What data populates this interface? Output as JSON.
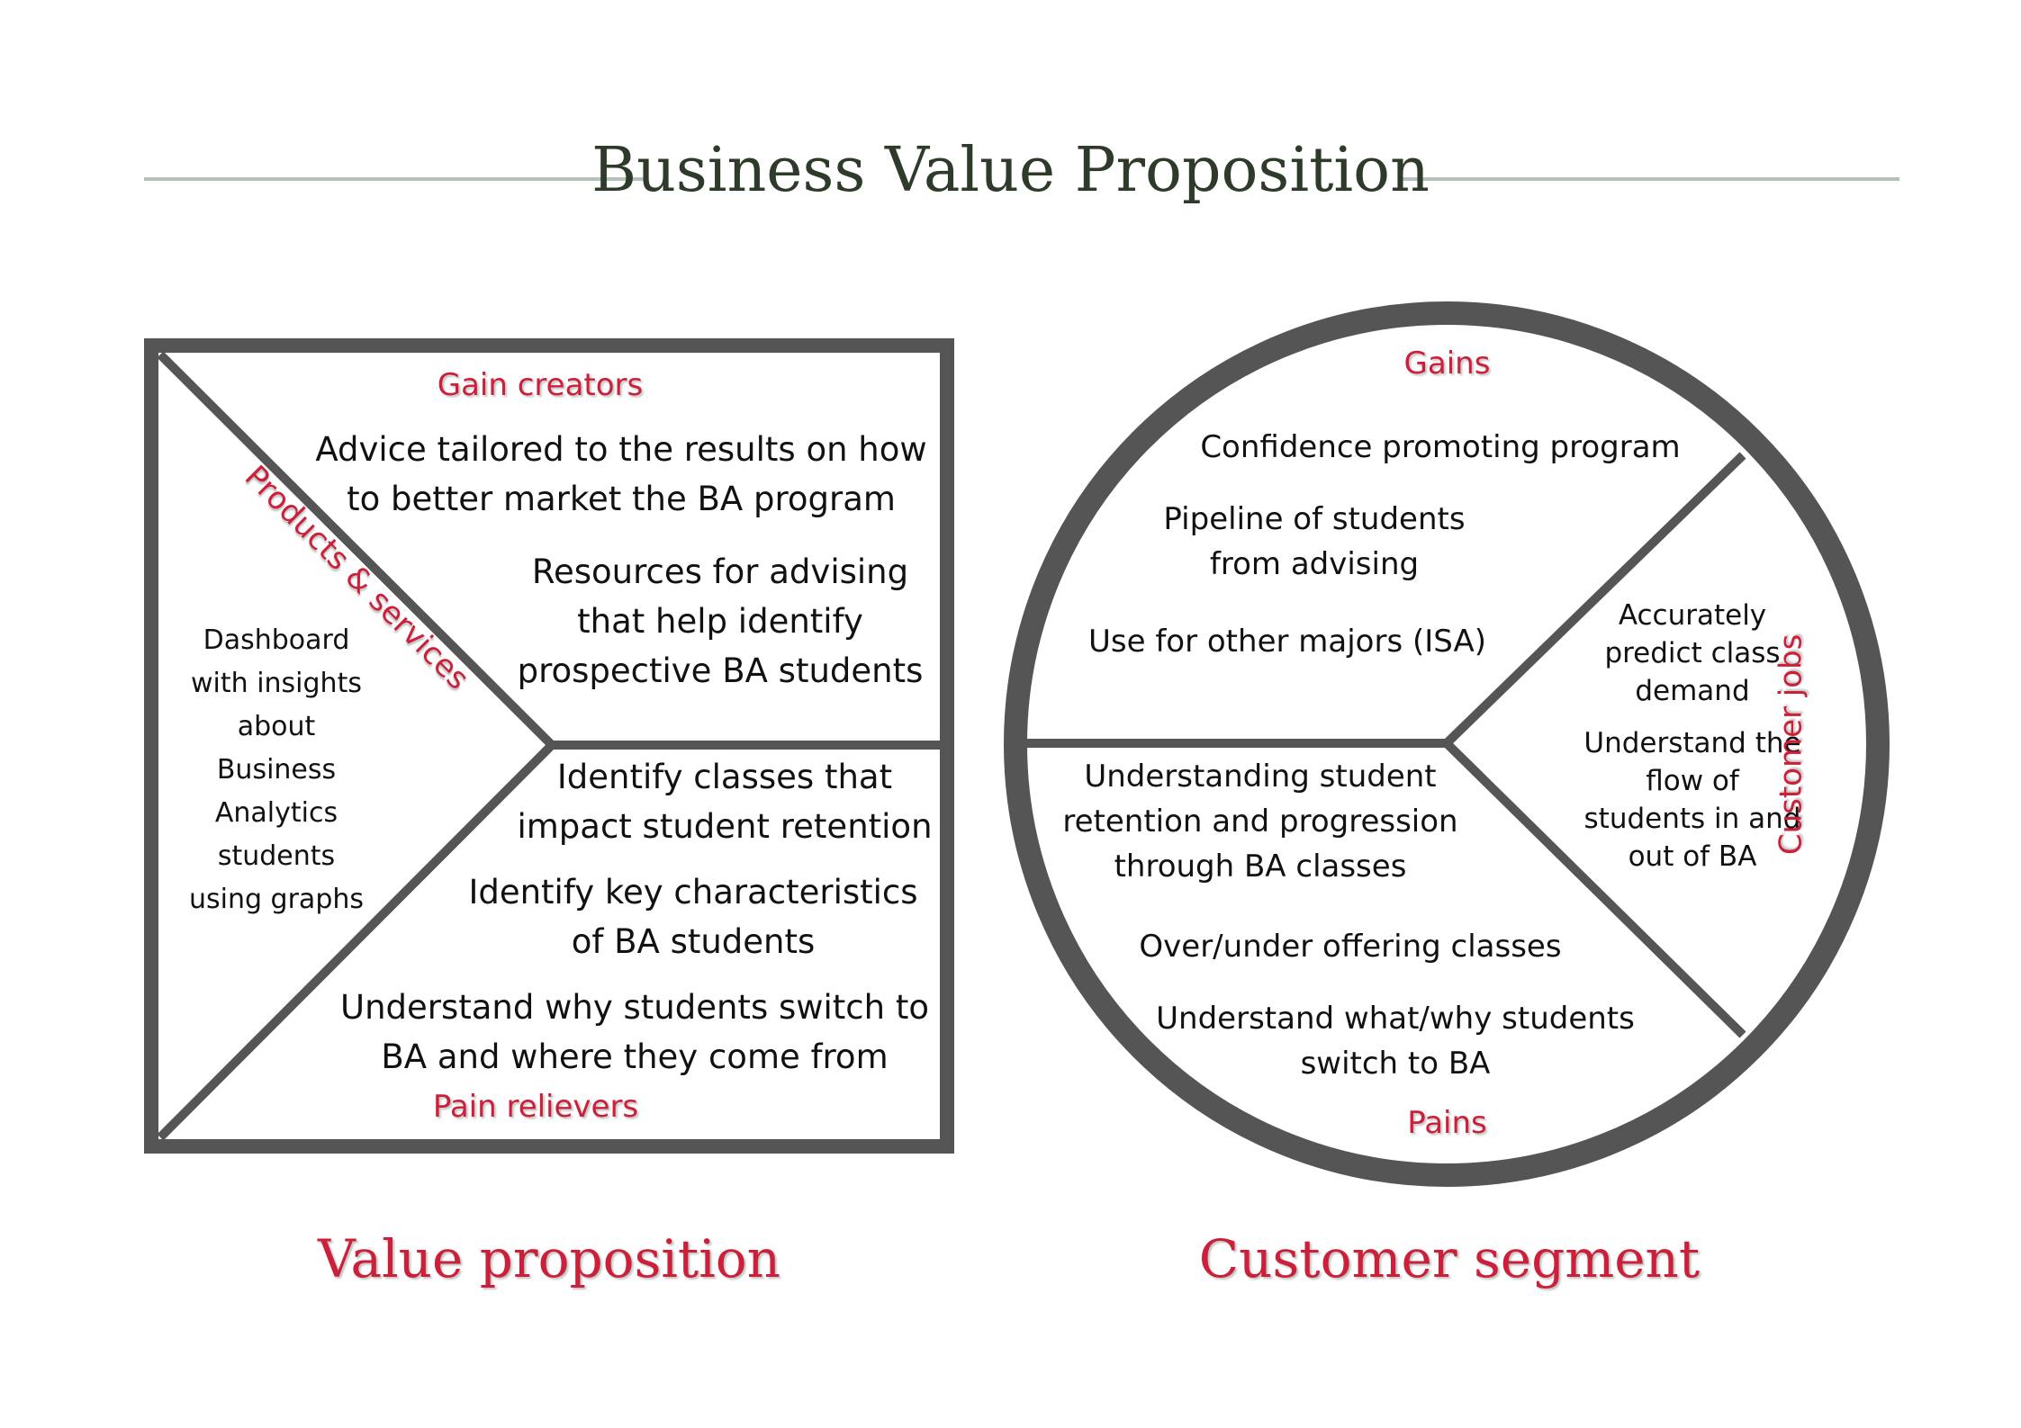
{
  "title": "Business Value Proposition",
  "colors": {
    "accent_red": "#cc1f3a",
    "frame_gray": "#555555",
    "title_text": "#2e3a2a",
    "rule_green_gray": "#b4c2b8"
  },
  "value_proposition": {
    "caption": "Value proposition",
    "gain_creators": {
      "label": "Gain creators",
      "items": [
        {
          "lines": [
            "Advice tailored to the results on how",
            "to better market the BA program"
          ]
        },
        {
          "lines": [
            "Resources for advising",
            "that help identify",
            "prospective BA students"
          ]
        }
      ]
    },
    "products_services": {
      "label": "Products & services",
      "items": [
        {
          "lines": [
            "Dashboard",
            "with insights",
            "about",
            "Business",
            "Analytics",
            "students",
            "using graphs"
          ]
        }
      ]
    },
    "pain_relievers": {
      "label": "Pain relievers",
      "items": [
        {
          "lines": [
            "Identify classes that",
            "impact student retention"
          ]
        },
        {
          "lines": [
            "Identify key characteristics",
            "of BA students"
          ]
        },
        {
          "lines": [
            "Understand why students switch to",
            "BA and where they come from"
          ]
        }
      ]
    }
  },
  "customer_segment": {
    "caption": "Customer segment",
    "gains": {
      "label": "Gains",
      "items": [
        {
          "lines": [
            "Confidence promoting program"
          ]
        },
        {
          "lines": [
            "Pipeline of students",
            "from advising"
          ]
        },
        {
          "lines": [
            "Use for other majors (ISA)"
          ]
        }
      ]
    },
    "pains": {
      "label": "Pains",
      "items": [
        {
          "lines": [
            "Understanding student",
            "retention and progression",
            "through BA classes"
          ]
        },
        {
          "lines": [
            "Over/under offering classes"
          ]
        },
        {
          "lines": [
            "Understand what/why students",
            "switch to BA"
          ]
        }
      ]
    },
    "customer_jobs": {
      "label": "Customer jobs",
      "items": [
        {
          "lines": [
            "Accurately",
            "predict class",
            "demand"
          ]
        },
        {
          "lines": [
            "Understand the",
            "flow of",
            "students in and",
            "out of BA"
          ]
        }
      ]
    }
  }
}
